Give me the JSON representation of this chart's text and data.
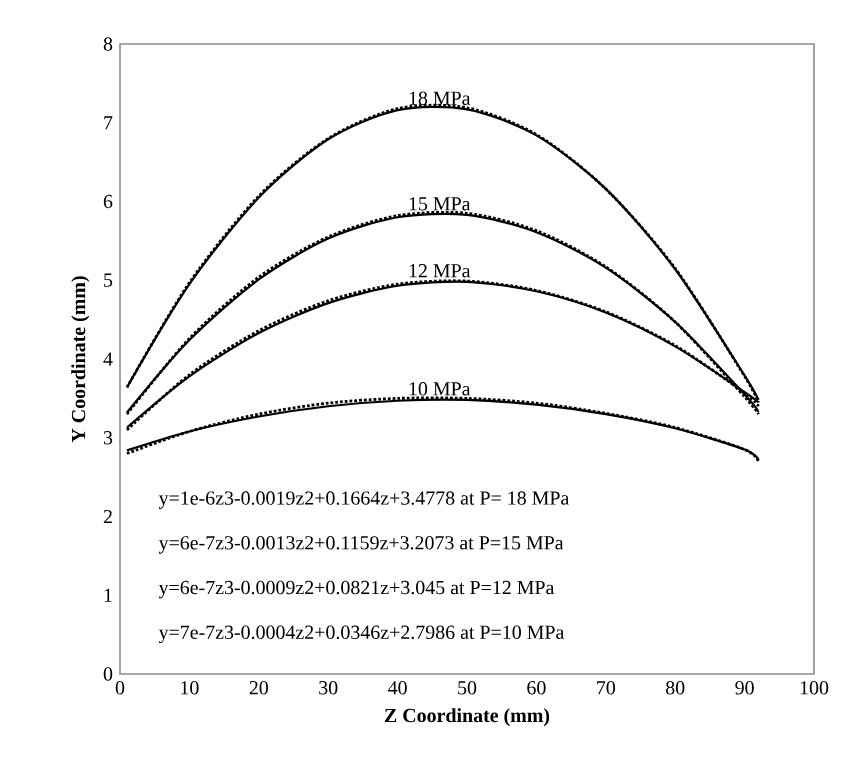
{
  "chart_data": {
    "type": "line",
    "xlabel": "Z Coordinate (mm)",
    "ylabel": "Y Coordinate (mm)",
    "xlim": [
      0,
      100
    ],
    "ylim": [
      0,
      8
    ],
    "xticks": [
      0,
      10,
      20,
      30,
      40,
      50,
      60,
      70,
      80,
      90,
      100
    ],
    "yticks": [
      0,
      1,
      2,
      3,
      4,
      5,
      6,
      7,
      8
    ],
    "x": [
      1,
      10,
      20,
      30,
      40,
      50,
      60,
      70,
      80,
      90,
      92
    ],
    "marker": "none",
    "series": [
      {
        "color": "#000000",
        "line_style": "dotted",
        "values": [
          3.64,
          4.97,
          6.07,
          6.8,
          7.18,
          7.19,
          6.85,
          6.16,
          5.15,
          3.78,
          3.45
        ]
      },
      {
        "name": "18 MPa",
        "color": "#000000",
        "line_style": "solid",
        "values": [
          3.64,
          4.95,
          6.05,
          6.79,
          7.16,
          7.17,
          6.84,
          6.16,
          5.14,
          3.79,
          3.48
        ]
      },
      {
        "color": "#000000",
        "line_style": "dotted",
        "values": [
          3.3,
          4.26,
          5.04,
          5.55,
          5.82,
          5.85,
          5.63,
          5.17,
          4.47,
          3.52,
          3.3
        ]
      },
      {
        "name": "15 MPa",
        "color": "#000000",
        "line_style": "solid",
        "values": [
          3.32,
          4.24,
          5.01,
          5.53,
          5.8,
          5.83,
          5.61,
          5.16,
          4.47,
          3.55,
          3.33
        ]
      },
      {
        "color": "#000000",
        "line_style": "dotted",
        "values": [
          3.1,
          3.8,
          4.36,
          4.74,
          4.95,
          4.99,
          4.87,
          4.6,
          4.17,
          3.57,
          3.4
        ]
      },
      {
        "name": "12 MPa",
        "color": "#000000",
        "line_style": "solid",
        "values": [
          3.13,
          3.78,
          4.33,
          4.71,
          4.93,
          4.98,
          4.86,
          4.59,
          4.16,
          3.58,
          3.45
        ]
      },
      {
        "color": "#000000",
        "line_style": "dotted",
        "values": [
          2.8,
          3.08,
          3.3,
          3.44,
          3.5,
          3.5,
          3.44,
          3.31,
          3.13,
          2.85,
          2.7
        ]
      },
      {
        "name": "10 MPa",
        "color": "#000000",
        "line_style": "solid",
        "values": [
          2.84,
          3.08,
          3.27,
          3.4,
          3.47,
          3.48,
          3.42,
          3.3,
          3.12,
          2.85,
          2.72
        ]
      }
    ],
    "annotations": [
      "y=1e-6z3-0.0019z2+0.1664z+3.4778 at P= 18 MPa",
      "y=6e-7z3-0.0013z2+0.1159z+3.2073 at P=15 MPa",
      "y=6e-7z3-0.0009z2+0.0821z+3.045 at P=12 MPa",
      "y=7e-7z3-0.0004z2+0.0346z+2.7986 at P=10 MPa"
    ]
  }
}
